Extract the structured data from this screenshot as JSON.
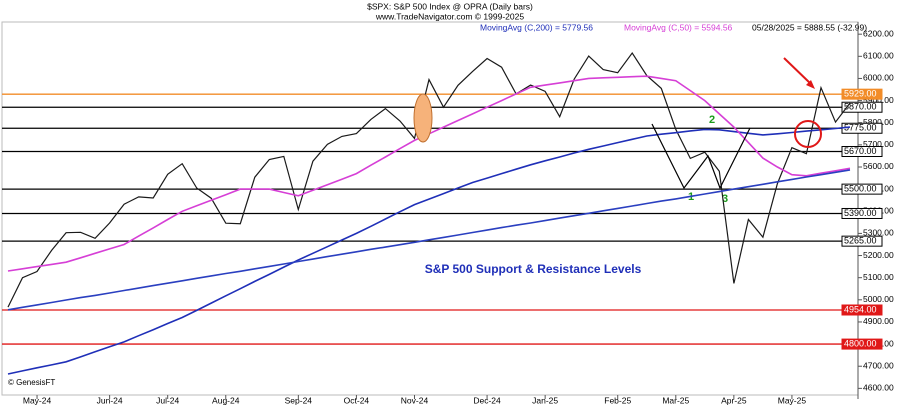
{
  "header": {
    "title": "$SPX:  S&P 500 Index @ OPRA  (Daily bars)",
    "source": "www.TradeNavigator.com © 1999-2025",
    "last": "05/28/2025 = 5888.55 (-32.99)"
  },
  "chart_data": {
    "type": "line",
    "categories": [
      null,
      null,
      "May-24",
      null,
      null,
      null,
      null,
      "Jun-24",
      null,
      null,
      null,
      "Jul-24",
      null,
      null,
      null,
      "Aug-24",
      null,
      null,
      null,
      null,
      "Sep-24",
      null,
      null,
      null,
      "Oct-24",
      null,
      null,
      null,
      "Nov-24",
      null,
      null,
      null,
      null,
      "Dec-24",
      null,
      null,
      null,
      "Jan-25",
      null,
      null,
      null,
      null,
      "Feb-25",
      null,
      null,
      null,
      "Mar-25",
      null,
      null,
      null,
      "Apr-25",
      null,
      null,
      null,
      "May-25",
      null,
      null,
      null,
      null
    ],
    "series": [
      {
        "color": "#1a1a1a",
        "values": [
          4967,
          5100,
          5128,
          5223,
          5303,
          5305,
          5278,
          5347,
          5432,
          5465,
          5460,
          5567,
          5615,
          5505,
          5459,
          5346,
          5344,
          5554,
          5634,
          5648,
          5408,
          5626,
          5702,
          5738,
          5751,
          5815,
          5864,
          5808,
          5729,
          5995,
          5870,
          5969,
          6032,
          6090,
          6051,
          5930,
          5970,
          5942,
          5827,
          5997,
          6101,
          6040,
          6026,
          6115,
          6013,
          5955,
          5770,
          5639,
          5667,
          5581,
          5074,
          5363,
          5283,
          5525,
          5687,
          5660,
          5958,
          5803,
          5889
        ]
      },
      {
        "name": "MovingAvg (C,200) = 5779.56",
        "color": "#1f2fb8",
        "values": [
          4665,
          4679,
          4693,
          4706,
          4720,
          4742,
          4765,
          4788,
          4810,
          4838,
          4865,
          4893,
          4920,
          4952,
          4985,
          5018,
          5050,
          5083,
          5115,
          5148,
          5180,
          5210,
          5240,
          5270,
          5300,
          5332,
          5365,
          5398,
          5430,
          5455,
          5480,
          5505,
          5530,
          5550,
          5570,
          5590,
          5610,
          5628,
          5645,
          5663,
          5680,
          5695,
          5710,
          5725,
          5740,
          5748,
          5755,
          5763,
          5770,
          5768,
          5760,
          5752,
          5745,
          5750,
          5756,
          5762,
          5768,
          5774,
          5780
        ]
      },
      {
        "name": "MovingAvg (C,50) = 5594.56",
        "color": "#d63fd6",
        "values": [
          5130,
          5140,
          5150,
          5160,
          5170,
          5190,
          5210,
          5230,
          5250,
          5288,
          5325,
          5363,
          5400,
          5425,
          5450,
          5475,
          5500,
          5500,
          5500,
          5485,
          5470,
          5495,
          5520,
          5545,
          5570,
          5608,
          5645,
          5683,
          5720,
          5750,
          5780,
          5810,
          5840,
          5870,
          5900,
          5930,
          5960,
          5970,
          5980,
          5990,
          6000,
          6003,
          6005,
          6008,
          6010,
          6000,
          5990,
          5945,
          5900,
          5840,
          5780,
          5710,
          5640,
          5600,
          5565,
          5560,
          5572,
          5583,
          5594
        ]
      },
      {
        "color": "#2a3fc0",
        "values": [
          4955,
          4966,
          4977,
          4988,
          4999,
          5010,
          5020,
          5031,
          5042,
          5053,
          5064,
          5075,
          5086,
          5097,
          5108,
          5119,
          5129,
          5140,
          5151,
          5162,
          5173,
          5184,
          5195,
          5206,
          5217,
          5228,
          5238,
          5249,
          5260,
          5271,
          5282,
          5293,
          5304,
          5315,
          5326,
          5337,
          5347,
          5358,
          5369,
          5380,
          5391,
          5402,
          5413,
          5424,
          5435,
          5446,
          5456,
          5467,
          5478,
          5489,
          5500,
          5511,
          5522,
          5533,
          5544,
          5555,
          5565,
          5576,
          5587
        ]
      }
    ],
    "levels": [
      {
        "value": 5929,
        "label": "5929.00",
        "color": "#f28c28"
      },
      {
        "value": 5870,
        "label": "5870.00",
        "color": "#000000"
      },
      {
        "value": 5775,
        "label": "5775.00",
        "color": "#000000"
      },
      {
        "value": 5670,
        "label": "5670.00",
        "color": "#000000"
      },
      {
        "value": 5500,
        "label": "5500.00",
        "color": "#000000"
      },
      {
        "value": 5390,
        "label": "5390.00",
        "color": "#000000"
      },
      {
        "value": 5265,
        "label": "5265.00",
        "color": "#000000"
      },
      {
        "value": 4954,
        "label": "4954.00",
        "color": "#e01818"
      },
      {
        "value": 4800,
        "label": "4800.00",
        "color": "#e01818"
      }
    ],
    "ylim": [
      4570,
      6255
    ],
    "yticks": [
      {
        "value": 4600,
        "label": "4600.00"
      },
      {
        "value": 4700,
        "label": "4700.00"
      },
      {
        "value": 4800,
        "label": "4800.00"
      },
      {
        "value": 4900,
        "label": "4900.00"
      },
      {
        "value": 5000,
        "label": "5000.00"
      },
      {
        "value": 5100,
        "label": "5100.00"
      },
      {
        "value": 5200,
        "label": "5200.00"
      },
      {
        "value": 5300,
        "label": "5300.00"
      },
      {
        "value": 5400,
        "label": "5400.00"
      },
      {
        "value": 5500,
        "label": "5500.00"
      },
      {
        "value": 5600,
        "label": "5600.00"
      },
      {
        "value": 5700,
        "label": "5700.00"
      },
      {
        "value": 5800,
        "label": "5800.00"
      },
      {
        "value": 5900,
        "label": "5900.00"
      },
      {
        "value": 6000,
        "label": "6000.00"
      },
      {
        "value": 6100,
        "label": "6100.00"
      },
      {
        "value": 6200,
        "label": "6200.00"
      }
    ],
    "annotations": [
      "S&P 500 Support & Resistance Levels",
      "1",
      "2",
      "3",
      "© GenesisFT"
    ]
  }
}
